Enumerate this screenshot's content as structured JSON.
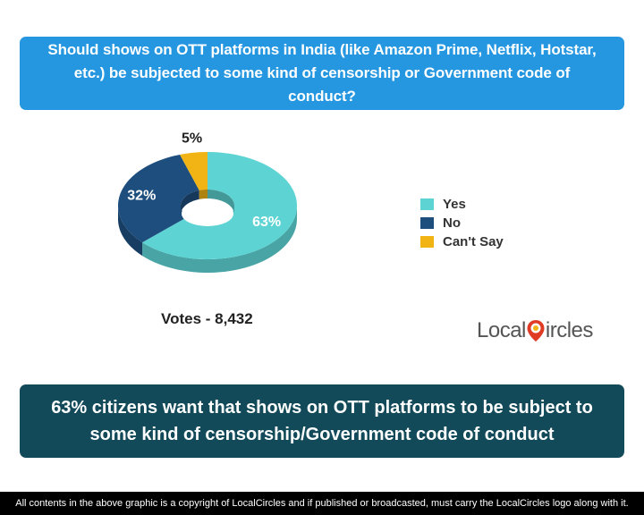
{
  "question": "Should shows on OTT platforms in India (like Amazon Prime, Netflix, Hotstar, etc.) be subjected to some kind of censorship or Government code of conduct?",
  "chart_data": {
    "type": "pie",
    "style": "3d-donut",
    "categories": [
      "Yes",
      "No",
      "Can't Say"
    ],
    "values": [
      63,
      32,
      5
    ],
    "labels": [
      "63%",
      "32%",
      "5%"
    ],
    "colors": [
      "#5dd4d3",
      "#1d4e7e",
      "#f2b414"
    ],
    "legend_position": "right"
  },
  "legend": {
    "items": [
      {
        "label": "Yes",
        "color": "#5dd4d3"
      },
      {
        "label": "No",
        "color": "#1d4e7e"
      },
      {
        "label": "Can't Say",
        "color": "#f2b414"
      }
    ]
  },
  "votes": "Votes - 8,432",
  "logo": {
    "part1": "Local",
    "part2": "ircles"
  },
  "conclusion": "63% citizens want that shows on OTT platforms to be subject to some kind of censorship/Government code of conduct",
  "footer": "All contents in the above graphic is a copyright of LocalCircles and if published or broadcasted, must carry the LocalCircles logo along with it."
}
